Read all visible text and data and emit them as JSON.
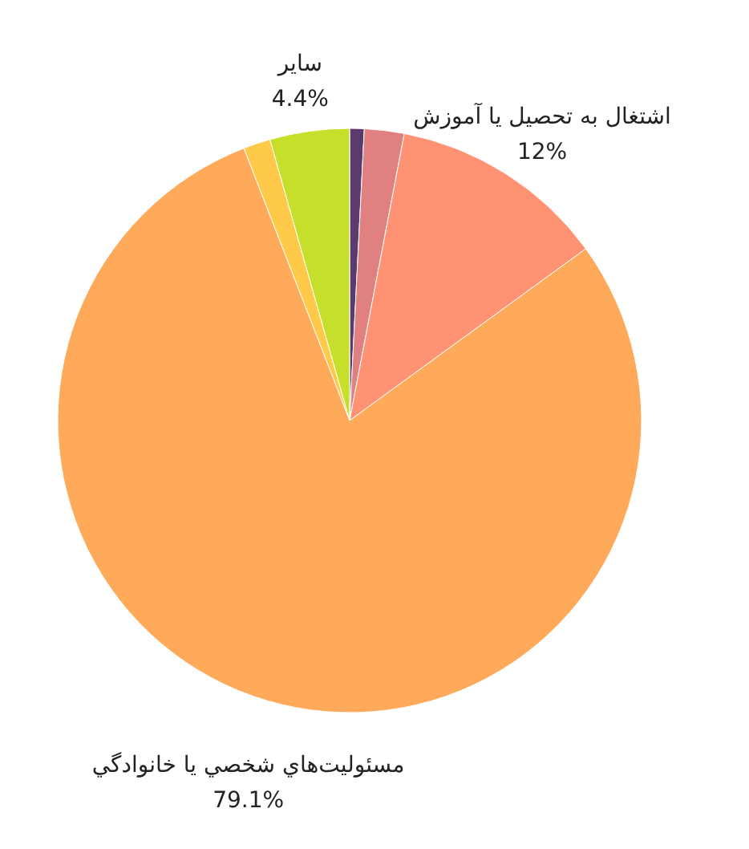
{
  "chart_data": {
    "type": "pie",
    "categories": [
      null,
      null,
      "اشتغال به تحصیل یا آموزش",
      "مسئوليت‌هاي شخصي يا خانوادگي",
      null,
      "سایر"
    ],
    "values": [
      0.8,
      2.2,
      12,
      79.1,
      1.5,
      4.4
    ],
    "colors": [
      "#5b3a6e",
      "#e08080",
      "#ff9272",
      "#ffa95a",
      "#ffca4a",
      "#c5df2a"
    ],
    "value_labels": [
      null,
      null,
      "12%",
      "79.1%",
      null,
      "4.4%"
    ]
  }
}
